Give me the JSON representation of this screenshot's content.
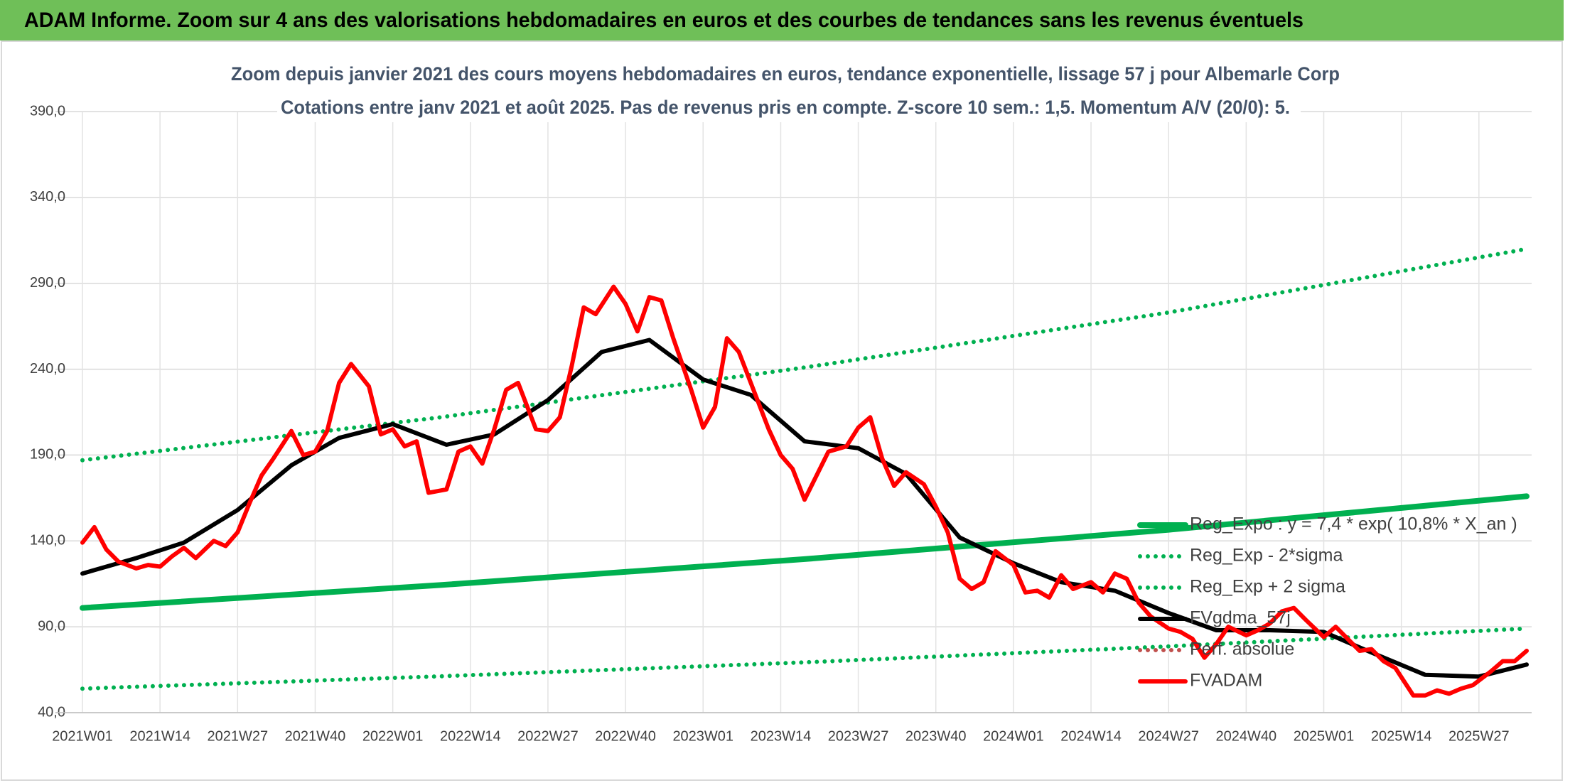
{
  "header": {
    "title": "ADAM Informe. Zoom sur 4 ans des valorisations hebdomadaires en euros et des courbes de tendances sans les revenus éventuels"
  },
  "chart_data": {
    "type": "line",
    "title": "Zoom depuis janvier 2021 des cours moyens hebdomadaires en euros, tendance exponentielle, lissage 57 j pour Albemarle Corp",
    "subtitle": "Cotations entre janv 2021 et août 2025. Pas de revenus pris en compte. Z-score 10 sem.: 1,5. Momentum A/V (20/0): 5.",
    "xlim": [
      0,
      242
    ],
    "xticks": [
      {
        "value": 0,
        "label": "2021W01"
      },
      {
        "value": 13,
        "label": "2021W14"
      },
      {
        "value": 26,
        "label": "2021W27"
      },
      {
        "value": 39,
        "label": "2021W40"
      },
      {
        "value": 52,
        "label": "2022W01"
      },
      {
        "value": 65,
        "label": "2022W14"
      },
      {
        "value": 78,
        "label": "2022W27"
      },
      {
        "value": 91,
        "label": "2022W40"
      },
      {
        "value": 104,
        "label": "2023W01"
      },
      {
        "value": 117,
        "label": "2023W14"
      },
      {
        "value": 130,
        "label": "2023W27"
      },
      {
        "value": 143,
        "label": "2023W40"
      },
      {
        "value": 156,
        "label": "2024W01"
      },
      {
        "value": 169,
        "label": "2024W14"
      },
      {
        "value": 182,
        "label": "2024W27"
      },
      {
        "value": 195,
        "label": "2024W40"
      },
      {
        "value": 208,
        "label": "2025W01"
      },
      {
        "value": 221,
        "label": "2025W14"
      },
      {
        "value": 234,
        "label": "2025W27"
      }
    ],
    "ylim": [
      40,
      390
    ],
    "yticks": [
      {
        "value": 40,
        "label": "40,0"
      },
      {
        "value": 90,
        "label": "90,0"
      },
      {
        "value": 140,
        "label": "140,0"
      },
      {
        "value": 190,
        "label": "190,0"
      },
      {
        "value": 240,
        "label": "240,0"
      },
      {
        "value": 290,
        "label": "290,0"
      },
      {
        "value": 340,
        "label": "340,0"
      },
      {
        "value": 390,
        "label": "390,0"
      }
    ],
    "grid": true,
    "legend": "lower right",
    "series": [
      {
        "name": "Reg_Expo : y = 7,4 * exp( 10,8% *  X_an )",
        "color": "#00b050",
        "style": "solid",
        "x": [
          0,
          60,
          121,
          182,
          242
        ],
        "values": [
          101,
          114.3,
          129.4,
          146.5,
          166
        ]
      },
      {
        "name": "Reg_Exp - 2*sigma",
        "color": "#00b050",
        "style": "dotted",
        "x": [
          0,
          60,
          121,
          182,
          242
        ],
        "values": [
          54,
          61.2,
          69.3,
          78.6,
          89
        ]
      },
      {
        "name": "Reg_Exp + 2 sigma",
        "color": "#00b050",
        "style": "dotted",
        "x": [
          0,
          60,
          121,
          182,
          242
        ],
        "values": [
          187,
          212,
          241,
          273,
          310
        ]
      },
      {
        "name": "FVgdma_57j",
        "color": "#000000",
        "style": "solid",
        "x": [
          0,
          9,
          17,
          26,
          35,
          43,
          52,
          61,
          69,
          78,
          87,
          95,
          104,
          112,
          121,
          130,
          138,
          147,
          156,
          164,
          173,
          182,
          190,
          199,
          208,
          216,
          225,
          234,
          242
        ],
        "values": [
          121,
          130,
          139,
          158,
          184,
          200,
          208,
          196,
          202,
          222,
          250,
          257,
          234,
          225,
          198,
          194,
          179,
          142,
          127,
          116,
          111,
          98,
          88,
          88,
          87,
          75,
          62,
          61,
          68
        ]
      },
      {
        "name": "Perf. absolue",
        "color": "#c0504d",
        "style": "dotted"
      },
      {
        "name": "FVADAM",
        "color": "#ff0000",
        "style": "solid",
        "x": [
          0,
          2,
          4,
          6,
          9,
          11,
          13,
          15,
          17,
          19,
          22,
          24,
          26,
          28,
          30,
          32,
          35,
          37,
          39,
          41,
          43,
          45,
          48,
          50,
          52,
          54,
          56,
          58,
          61,
          63,
          65,
          67,
          69,
          71,
          73,
          76,
          78,
          80,
          82,
          84,
          86,
          89,
          91,
          93,
          95,
          97,
          99,
          102,
          104,
          106,
          108,
          110,
          112,
          115,
          117,
          119,
          121,
          123,
          125,
          128,
          130,
          132,
          134,
          136,
          138,
          141,
          143,
          145,
          147,
          149,
          151,
          153,
          156,
          158,
          160,
          162,
          164,
          166,
          169,
          171,
          173,
          175,
          177,
          179,
          182,
          184,
          186,
          188,
          190,
          192,
          195,
          197,
          199,
          201,
          203,
          205,
          208,
          210,
          212,
          214,
          216,
          218,
          220,
          223,
          225,
          227,
          229,
          231,
          233,
          236,
          238,
          240,
          242
        ],
        "values": [
          139,
          148,
          135,
          128,
          124,
          126,
          125,
          131,
          136,
          130,
          140,
          137,
          145,
          162,
          178,
          188,
          204,
          190,
          192,
          204,
          232,
          243,
          230,
          202,
          205,
          195,
          198,
          168,
          170,
          192,
          195,
          185,
          205,
          228,
          232,
          205,
          204,
          212,
          242,
          276,
          272,
          288,
          278,
          262,
          282,
          280,
          258,
          228,
          206,
          218,
          258,
          250,
          232,
          205,
          190,
          182,
          164,
          178,
          192,
          195,
          206,
          212,
          188,
          172,
          180,
          173,
          160,
          145,
          118,
          112,
          116,
          134,
          126,
          110,
          111,
          107,
          120,
          112,
          116,
          110,
          121,
          118,
          104,
          96,
          89,
          87,
          83,
          72,
          80,
          90,
          85,
          88,
          92,
          99,
          101,
          94,
          84,
          90,
          83,
          76,
          77,
          70,
          66,
          50,
          50,
          53,
          51,
          54,
          56,
          64,
          70,
          70,
          76
        ]
      }
    ]
  }
}
